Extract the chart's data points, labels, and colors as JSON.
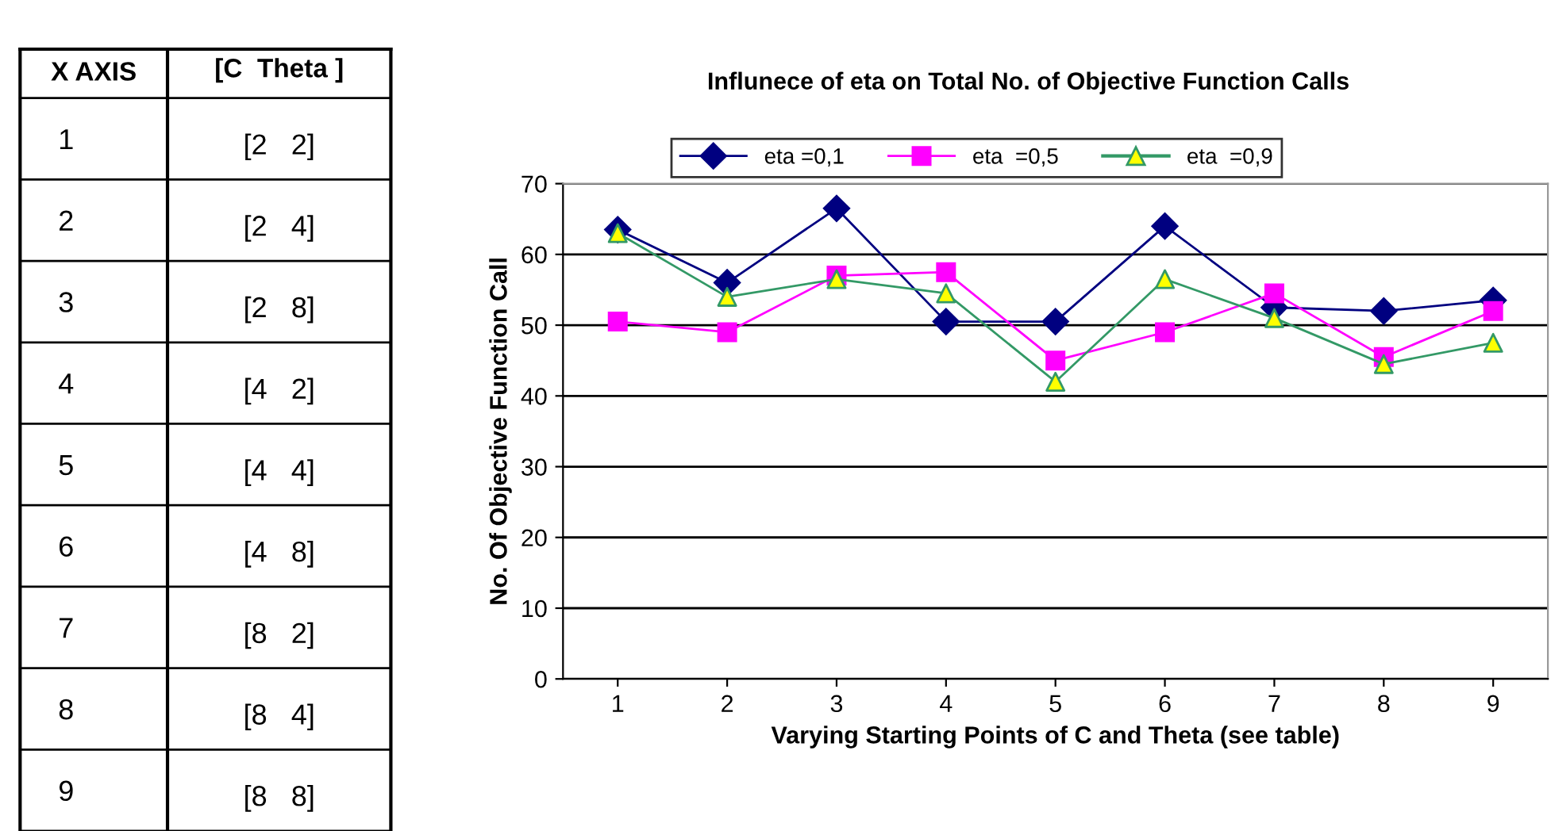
{
  "chart_data": [
    {
      "type": "heatmap",
      "ylabel": "X AXIS",
      "categories": [
        "[C  Theta ]"
      ],
      "y_categories": [
        "1",
        "2",
        "3",
        "4",
        "5",
        "6",
        "7",
        "8",
        "9"
      ],
      "cells": [
        [
          null
        ],
        [
          null
        ],
        [
          null
        ],
        [
          null
        ],
        [
          null
        ],
        [
          null
        ],
        [
          null
        ],
        [
          null
        ],
        [
          null
        ]
      ],
      "cell_labels": [
        [
          "[2   2]"
        ],
        [
          "[2   4]"
        ],
        [
          "[2   8]"
        ],
        [
          "[4   2]"
        ],
        [
          "[4   4]"
        ],
        [
          "[4   8]"
        ],
        [
          "[8   2]"
        ],
        [
          "[8   4]"
        ],
        [
          "[8   8]"
        ]
      ]
    },
    {
      "type": "line",
      "title": "Influnece of eta on Total No. of Objective Function Calls",
      "xlabel": "Varying Starting Points of C and Theta (see table)",
      "ylabel": "No. Of Objective Function Call",
      "categories": [
        "1",
        "2",
        "3",
        "4",
        "5",
        "6",
        "7",
        "8",
        "9"
      ],
      "series": [
        {
          "name": "eta =0,1",
          "color": "#000080",
          "marker": "diamond",
          "values": [
            63.5,
            56,
            66.5,
            50.5,
            50.5,
            64,
            52.5,
            52,
            53.5
          ]
        },
        {
          "name": "eta  =0,5",
          "color": "#ff00ff",
          "marker": "square",
          "values": [
            50.5,
            49,
            57,
            57.5,
            45,
            49,
            54.5,
            45.5,
            52
          ]
        },
        {
          "name": "eta  =0,9",
          "color": "#339966",
          "colors": [
            "#ffff00",
            "#ffff00",
            "#ffff00",
            "#ffff00",
            "#ffff00",
            "#ffff00",
            "#ffff00",
            "#ffff00",
            "#ffff00"
          ],
          "marker": "triangle",
          "values": [
            63,
            54,
            56.5,
            54.5,
            42,
            56.5,
            51,
            44.5,
            47.5
          ]
        }
      ],
      "ylim": [
        0,
        70
      ],
      "yticks": [
        0,
        10,
        20,
        30,
        40,
        50,
        60,
        70
      ],
      "grid": "y",
      "legend": "top"
    }
  ]
}
